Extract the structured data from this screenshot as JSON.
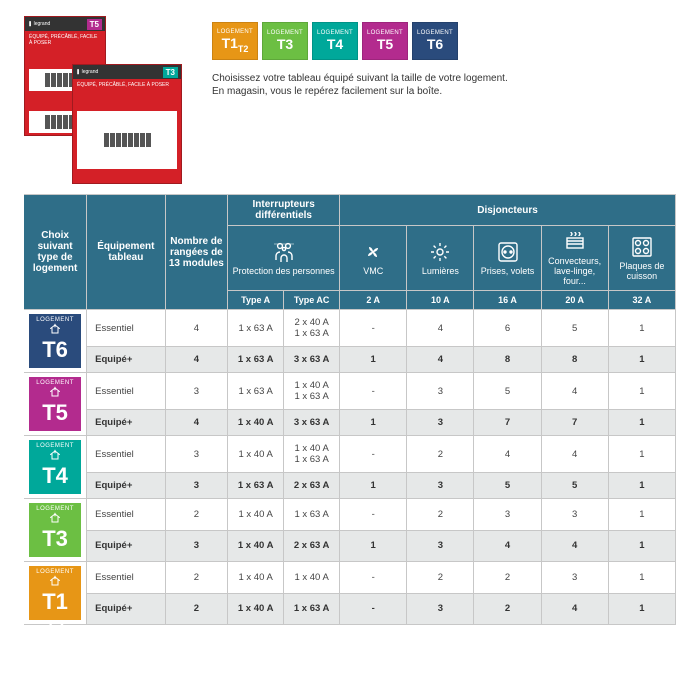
{
  "tile_colors": {
    "T1T2": "#e79616",
    "T3": "#6cbf43",
    "T4": "#00a89a",
    "T5": "#b32b8e",
    "T6": "#2a4b7c"
  },
  "tiles": [
    {
      "lo": "LOGEMENT",
      "tn": "T1T2",
      "c": "#e79616"
    },
    {
      "lo": "LOGEMENT",
      "tn": "T3",
      "c": "#6cbf43"
    },
    {
      "lo": "LOGEMENT",
      "tn": "T4",
      "c": "#00a89a"
    },
    {
      "lo": "LOGEMENT",
      "tn": "T5",
      "c": "#b32b8e"
    },
    {
      "lo": "LOGEMENT",
      "tn": "T6",
      "c": "#2a4b7c"
    }
  ],
  "desc": "Choisissez votre tableau équipé suivant la taille de votre logement. En magasin, vous le repérez facilement sur la boîte.",
  "header": {
    "choix": "Choix suivant type de logement",
    "equipement": "Équipement tableau",
    "nb": "Nombre de rangées de 13 modules",
    "interr": "Interrupteurs différentiels",
    "protection": "Protection des personnes",
    "typeA": "Type A",
    "typeAC": "Type AC",
    "disj": "Disjoncteurs",
    "dcols": [
      {
        "label": "VMC",
        "amp": "2 A"
      },
      {
        "label": "Lumières",
        "amp": "10 A"
      },
      {
        "label": "Prises, volets",
        "amp": "16 A"
      },
      {
        "label": "Convecteurs, lave-linge, four...",
        "amp": "20 A"
      },
      {
        "label": "Plaques de cuisson",
        "amp": "32 A"
      }
    ]
  },
  "rows": [
    {
      "log": "T6",
      "c": "#2a4b7c",
      "data": [
        [
          "Essentiel",
          "4",
          "1 x 63 A",
          "2 x 40 A\n1 x 63 A",
          "-",
          "4",
          "6",
          "5",
          "1"
        ],
        [
          "Equipé+",
          "4",
          "1 x 63 A",
          "3 x 63 A",
          "1",
          "4",
          "8",
          "8",
          "1"
        ]
      ]
    },
    {
      "log": "T5",
      "c": "#b32b8e",
      "data": [
        [
          "Essentiel",
          "3",
          "1 x 63 A",
          "1 x 40 A\n1 x 63 A",
          "-",
          "3",
          "5",
          "4",
          "1"
        ],
        [
          "Equipé+",
          "4",
          "1 x 40 A",
          "3 x 63 A",
          "1",
          "3",
          "7",
          "7",
          "1"
        ]
      ]
    },
    {
      "log": "T4",
      "c": "#00a89a",
      "data": [
        [
          "Essentiel",
          "3",
          "1 x 40 A",
          "1 x 40 A\n1 x 63 A",
          "-",
          "2",
          "4",
          "4",
          "1"
        ],
        [
          "Equipé+",
          "3",
          "1 x 63 A",
          "2 x 63 A",
          "1",
          "3",
          "5",
          "5",
          "1"
        ]
      ]
    },
    {
      "log": "T3",
      "c": "#6cbf43",
      "data": [
        [
          "Essentiel",
          "2",
          "1 x 40 A",
          "1 x 63 A",
          "-",
          "2",
          "3",
          "3",
          "1"
        ],
        [
          "Equipé+",
          "3",
          "1 x 40 A",
          "2 x 63 A",
          "1",
          "3",
          "4",
          "4",
          "1"
        ]
      ]
    },
    {
      "log": "T1T2",
      "c": "#e79616",
      "tn": "T1 T2",
      "data": [
        [
          "Essentiel",
          "2",
          "1 x 40 A",
          "1 x 40 A",
          "-",
          "2",
          "2",
          "3",
          "1"
        ],
        [
          "Equipé+",
          "2",
          "1 x 40 A",
          "1 x 63 A",
          "-",
          "3",
          "2",
          "4",
          "1"
        ]
      ]
    }
  ]
}
